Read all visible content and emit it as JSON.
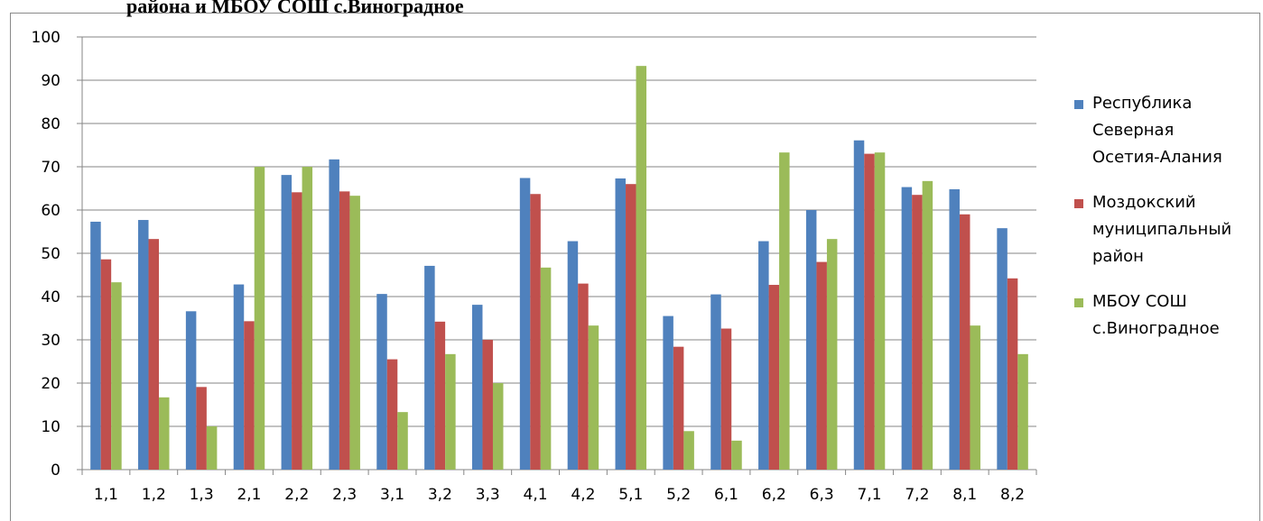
{
  "title": "района и МБОУ СОШ с.Виноградное",
  "colors": {
    "series1": "#4F81BD",
    "series2": "#C0504D",
    "series3": "#9BBB59",
    "grid": "#868686",
    "axis": "#868686"
  },
  "chart_data": {
    "type": "bar",
    "categories": [
      "1,1",
      "1,2",
      "1,3",
      "2,1",
      "2,2",
      "2,3",
      "3,1",
      "3,2",
      "3,3",
      "4,1",
      "4,2",
      "5,1",
      "5,2",
      "6,1",
      "6,2",
      "6,3",
      "7,1",
      "7,2",
      "8,1",
      "8,2"
    ],
    "series": [
      {
        "name": "Республика Северная Осетия-Алания",
        "legend_lines": [
          "Республика",
          "Северная",
          "Осетия-Алания"
        ],
        "values": [
          57.3,
          57.7,
          36.6,
          42.8,
          68.1,
          71.7,
          40.6,
          47.1,
          38.1,
          67.4,
          52.8,
          67.3,
          35.5,
          40.5,
          52.8,
          60.0,
          76.1,
          65.3,
          64.8,
          55.8
        ]
      },
      {
        "name": "Моздокский муниципальный район",
        "legend_lines": [
          "Моздокский",
          "муниципальный",
          "район"
        ],
        "values": [
          48.6,
          53.3,
          19.1,
          34.3,
          64.1,
          64.3,
          25.5,
          34.2,
          30.0,
          63.7,
          43.0,
          66.0,
          28.4,
          32.6,
          42.7,
          48.0,
          73.0,
          63.5,
          59.0,
          44.2
        ]
      },
      {
        "name": "МБОУ СОШ с.Виноградное",
        "legend_lines": [
          "МБОУ СОШ",
          "с.Виноградное"
        ],
        "values": [
          43.3,
          16.7,
          10.0,
          70.0,
          70.0,
          63.3,
          13.3,
          26.7,
          20.0,
          46.7,
          33.3,
          93.3,
          8.9,
          6.7,
          73.3,
          53.3,
          73.3,
          66.7,
          33.3,
          26.7
        ]
      }
    ],
    "ylim": [
      0,
      100
    ],
    "yticks": [
      0,
      10,
      20,
      30,
      40,
      50,
      60,
      70,
      80,
      90,
      100
    ],
    "grid": true,
    "legend_position": "right"
  }
}
